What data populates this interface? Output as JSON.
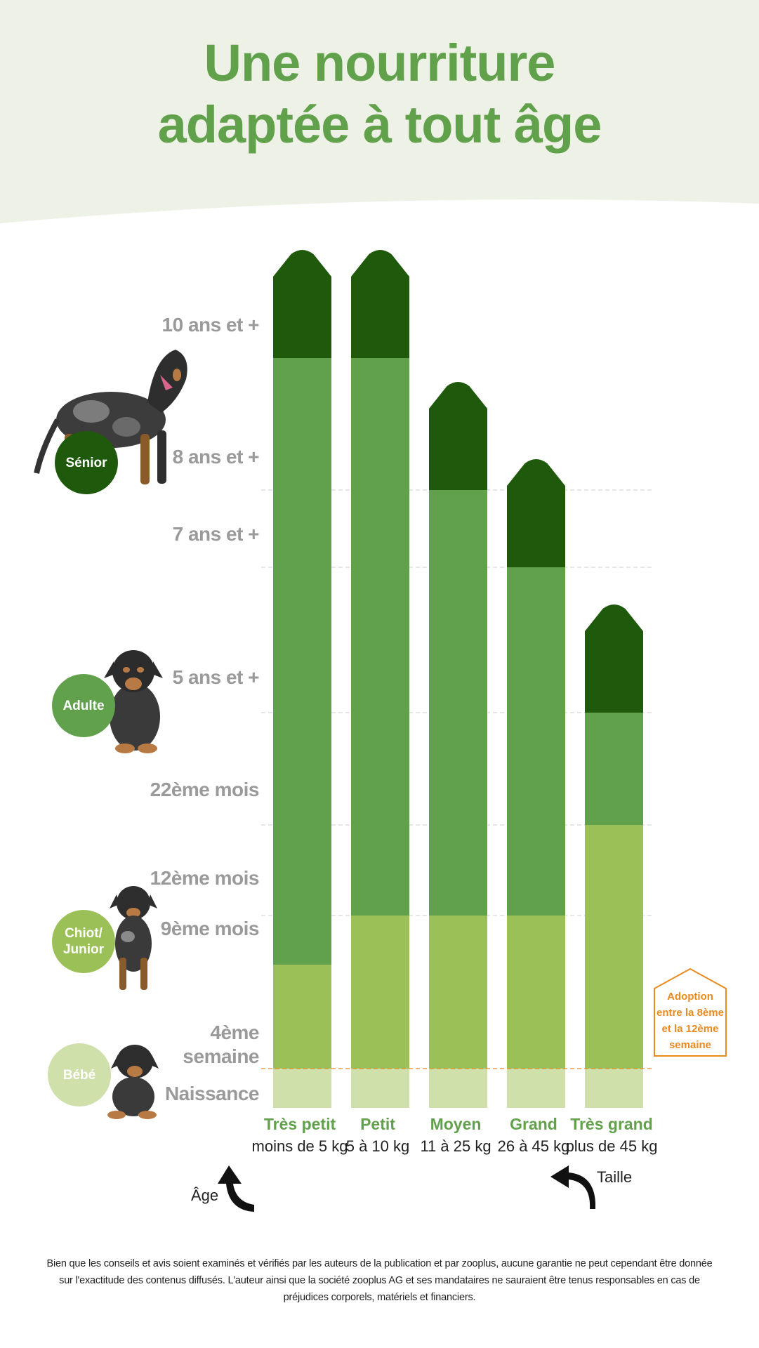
{
  "header": {
    "title_line1": "Une nourriture",
    "title_line2": "adaptée à tout âge"
  },
  "colors": {
    "header_bg": "#eef1e6",
    "title": "#62a14b",
    "senior": "#1f5a0c",
    "adult": "#62a14b",
    "junior": "#9bc057",
    "bebe": "#cfe0aa",
    "age_label": "#9a9a9a",
    "adoption": "#e98a1f",
    "category": "#62a14b"
  },
  "stages": [
    {
      "key": "senior",
      "label": "Sénior",
      "color": "#1f5a0c",
      "icon": "dog-senior-photo"
    },
    {
      "key": "adult",
      "label": "Adulte",
      "color": "#62a14b",
      "icon": "dog-adult-photo"
    },
    {
      "key": "junior",
      "label": "Chiot/\nJunior",
      "color": "#9bc057",
      "icon": "dog-puppy-photo"
    },
    {
      "key": "bebe",
      "label": "Bébé",
      "color": "#cfe0aa",
      "icon": "dog-baby-photo"
    }
  ],
  "chart_data": {
    "type": "bar",
    "subtype": "stacked-range",
    "title": "Une nourriture adaptée à tout âge",
    "x_axis_word": "Taille",
    "y_axis_word": "Âge",
    "y_ticks": [
      "Naissance",
      "4ème semaine",
      "9ème mois",
      "12ème mois",
      "22ème mois",
      "5 ans et +",
      "7 ans et +",
      "8 ans et +",
      "10 ans et +"
    ],
    "categories": [
      "Très petit",
      "Petit",
      "Moyen",
      "Grand",
      "Très grand"
    ],
    "category_subtitles": [
      "moins de 5 kg",
      "5 à 10 kg",
      "11 à 25 kg",
      "26 à 45 kg",
      "plus de 45 kg"
    ],
    "series": [
      {
        "name": "Bébé",
        "segments": [
          {
            "from": "Naissance",
            "to": "4ème semaine"
          },
          {
            "from": "Naissance",
            "to": "4ème semaine"
          },
          {
            "from": "Naissance",
            "to": "4ème semaine"
          },
          {
            "from": "Naissance",
            "to": "4ème semaine"
          },
          {
            "from": "Naissance",
            "to": "4ème semaine"
          }
        ]
      },
      {
        "name": "Chiot/Junior",
        "segments": [
          {
            "from": "4ème semaine",
            "to": "9ème mois"
          },
          {
            "from": "4ème semaine",
            "to": "12ème mois"
          },
          {
            "from": "4ème semaine",
            "to": "12ème mois"
          },
          {
            "from": "4ème semaine",
            "to": "12ème mois"
          },
          {
            "from": "4ème semaine",
            "to": "22ème mois"
          }
        ]
      },
      {
        "name": "Adulte",
        "segments": [
          {
            "from": "9ème mois",
            "to": "10 ans et +"
          },
          {
            "from": "12ème mois",
            "to": "10 ans et +"
          },
          {
            "from": "12ème mois",
            "to": "8 ans et +"
          },
          {
            "from": "12ème mois",
            "to": "7 ans et +"
          },
          {
            "from": "22ème mois",
            "to": "5 ans et +"
          }
        ]
      },
      {
        "name": "Sénior",
        "segments": [
          {
            "from": "10 ans et +",
            "to": null
          },
          {
            "from": "10 ans et +",
            "to": null
          },
          {
            "from": "8 ans et +",
            "to": null
          },
          {
            "from": "7 ans et +",
            "to": null
          },
          {
            "from": "5 ans et +",
            "to": null
          }
        ]
      }
    ],
    "gridlines_dashed": true,
    "annotation": "Adoption entre la 8ème et la 12ème semaine"
  },
  "adoption_label": "Adoption\nentre la 8ème\net la 12ème\nsemaine",
  "disclaimer": "Bien que les conseils et avis soient examinés et vérifiés par les auteurs de la publication et par zooplus, aucune garantie ne peut cependant être donnée sur l'exactitude des contenus diffusés. L'auteur ainsi que la société zooplus AG et ses mandataires ne sauraient être tenus responsables en cas de préjudices corporels, matériels et financiers."
}
